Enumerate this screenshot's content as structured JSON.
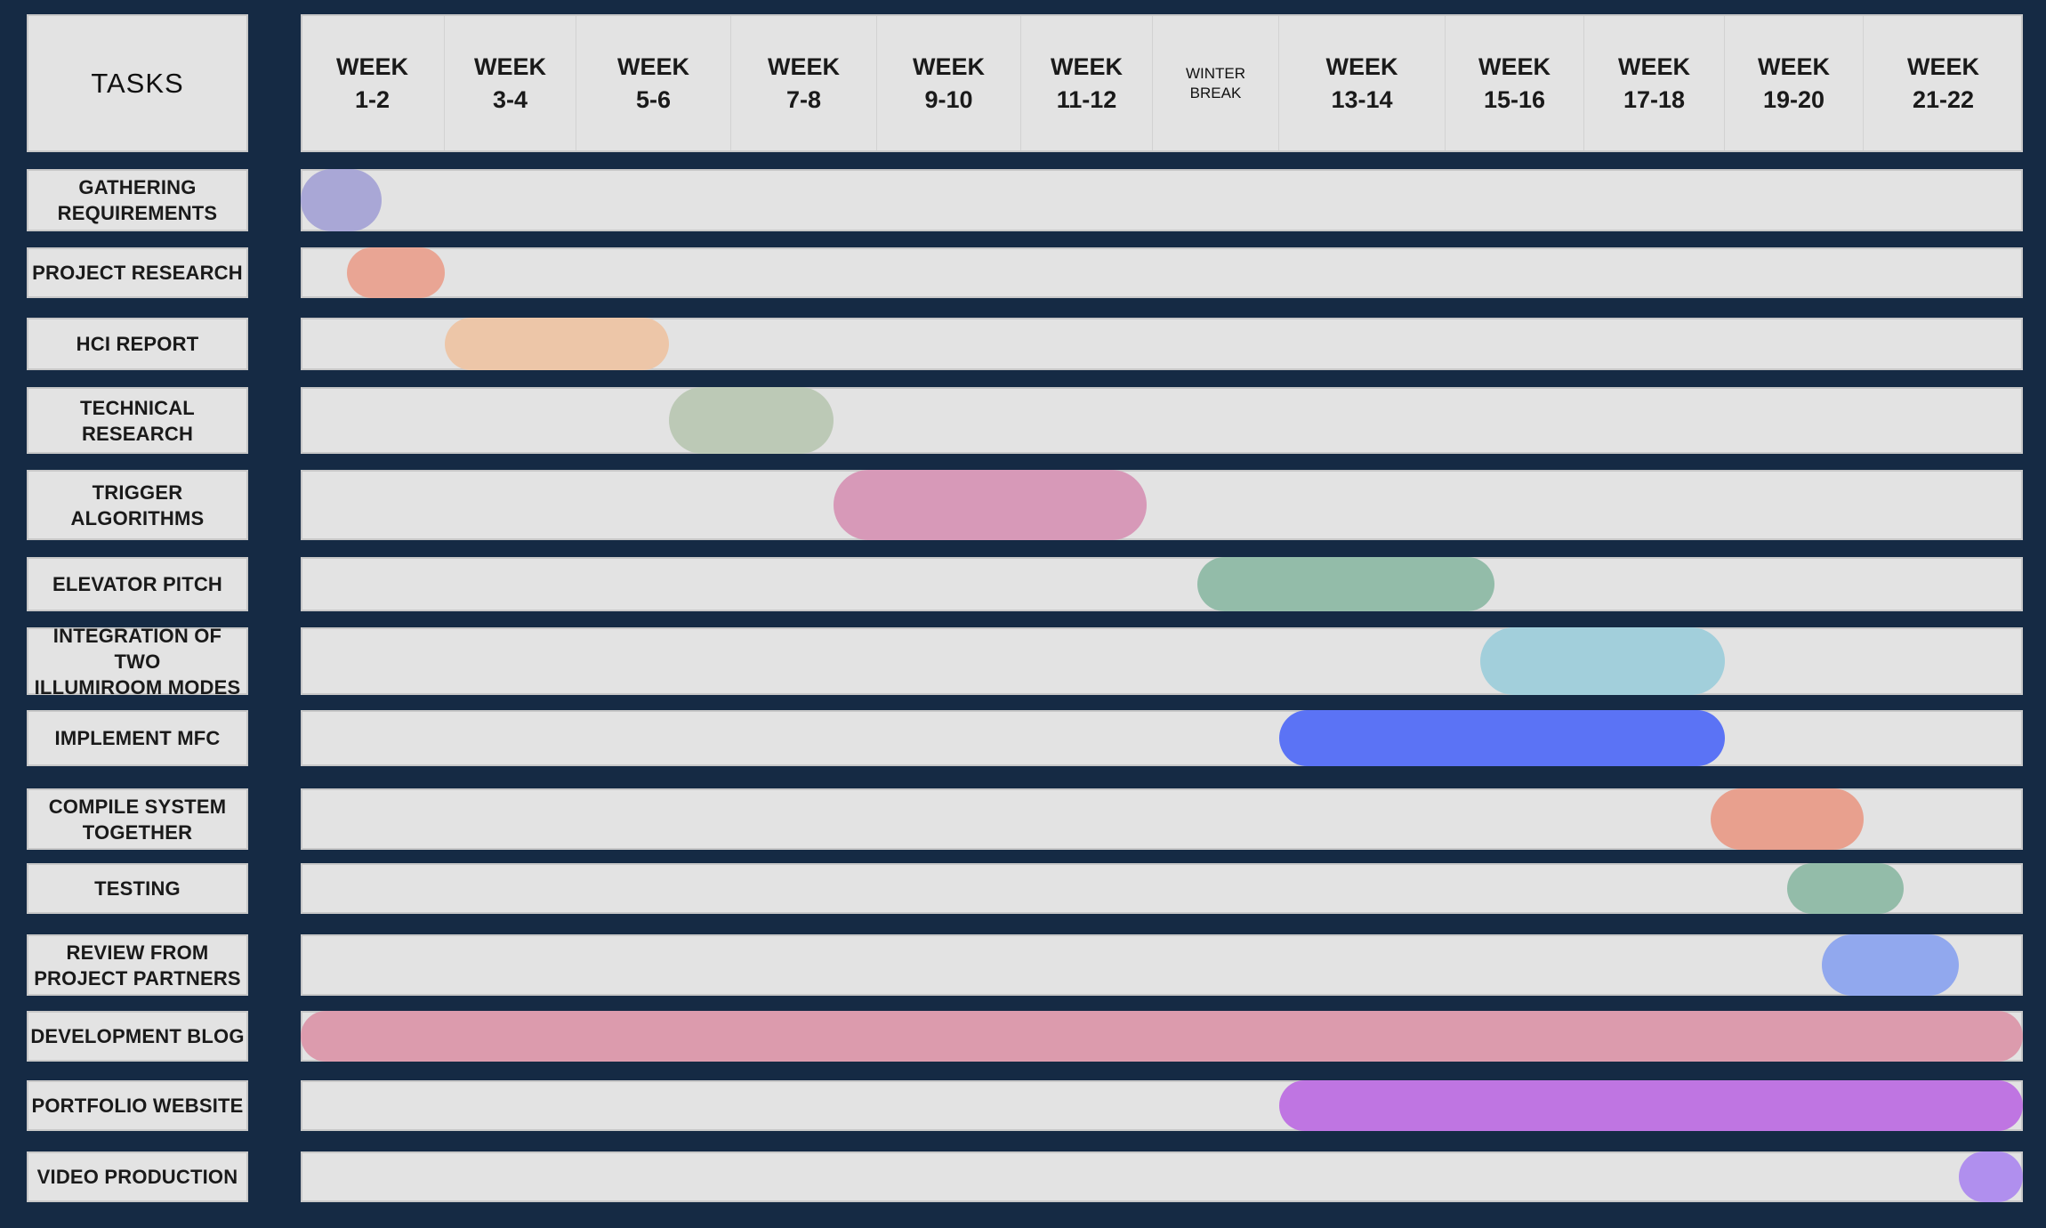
{
  "header": {
    "tasks_label": "TASKS"
  },
  "weeks": [
    {
      "label": "WEEK\n1-2"
    },
    {
      "label": "WEEK\n3-4"
    },
    {
      "label": "WEEK\n5-6"
    },
    {
      "label": "WEEK\n7-8"
    },
    {
      "label": "WEEK\n9-10"
    },
    {
      "label": "WEEK\n11-12"
    },
    {
      "label": "WINTER\nBREAK",
      "small": true
    },
    {
      "label": "WEEK\n13-14"
    },
    {
      "label": "WEEK\n15-16"
    },
    {
      "label": "WEEK\n17-18"
    },
    {
      "label": "WEEK\n19-20"
    },
    {
      "label": "WEEK\n21-22"
    }
  ],
  "tasks": [
    {
      "label": "GATHERING\nREQUIREMENTS",
      "start": 0.0,
      "end": 0.56,
      "color": "#a9a7d6"
    },
    {
      "label": "PROJECT RESEARCH",
      "start": 0.32,
      "end": 1.0,
      "color": "#e9a594"
    },
    {
      "label": "HCI REPORT",
      "start": 1.0,
      "end": 2.6,
      "color": "#edc6a8"
    },
    {
      "label": "TECHNICAL\nRESEARCH",
      "start": 2.6,
      "end": 3.7,
      "color": "#bcc9b6"
    },
    {
      "label": "TRIGGER\nALGORITHMS",
      "start": 3.7,
      "end": 5.95,
      "color": "#d799b8"
    },
    {
      "label": "ELEVATOR PITCH",
      "start": 6.35,
      "end": 8.35,
      "color": "#93bca9"
    },
    {
      "label": "INTEGRATION OF TWO\nILLUMIROOM MODES",
      "start": 8.25,
      "end": 10.0,
      "color": "#a2cfdb"
    },
    {
      "label": "IMPLEMENT MFC",
      "start": 7.0,
      "end": 10.0,
      "color": "#5b73f5"
    },
    {
      "label": "COMPILE SYSTEM\nTOGETHER",
      "start": 9.9,
      "end": 11.0,
      "color": "#e8a08e"
    },
    {
      "label": "TESTING",
      "start": 10.45,
      "end": 11.25,
      "color": "#93bca9"
    },
    {
      "label": "REVIEW FROM\nPROJECT PARTNERS",
      "start": 10.7,
      "end": 11.6,
      "color": "#91a8ee"
    },
    {
      "label": "DEVELOPMENT BLOG",
      "start": 0.0,
      "end": 12.0,
      "color": "#dc9bad"
    },
    {
      "label": "PORTFOLIO WEBSITE",
      "start": 7.0,
      "end": 12.0,
      "color": "#bf75e2"
    },
    {
      "label": "VIDEO PRODUCTION",
      "start": 11.6,
      "end": 12.0,
      "color": "#b08fee"
    }
  ]
}
